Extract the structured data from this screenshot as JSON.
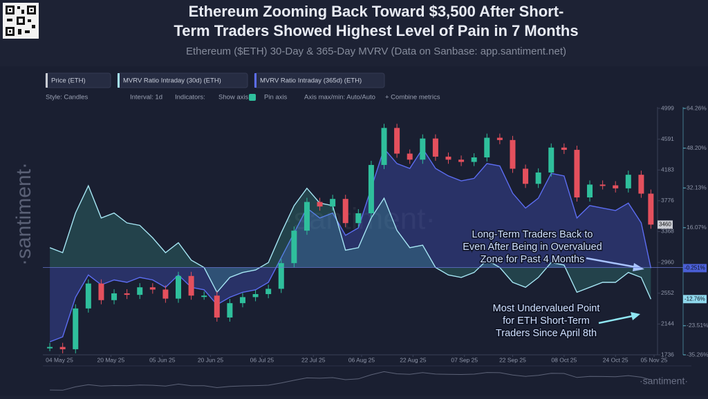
{
  "chart_data": {
    "type": "line",
    "title": [
      "Ethereum Zooming Back Toward $3,500 After Short-",
      "Term Traders Showed Highest Level of Pain in 7 Months"
    ],
    "subtitle": "Ethereum ($ETH) 30-Day & 365-Day MVRV (Data on Sanbase: app.santiment.net)",
    "toolbar": [
      "Style: Candles",
      "Interval: 1d",
      "Indicators:",
      "Show axis",
      "Pin axis",
      "Axis max/min: Auto/Auto",
      "+ Combine metrics"
    ],
    "watermark": "·santiment·",
    "x": [
      "2025-05-01",
      "2025-05-05",
      "2025-05-09",
      "2025-05-13",
      "2025-05-17",
      "2025-05-21",
      "2025-05-25",
      "2025-05-29",
      "2025-06-02",
      "2025-06-06",
      "2025-06-10",
      "2025-06-14",
      "2025-06-18",
      "2025-06-22",
      "2025-06-26",
      "2025-06-30",
      "2025-07-04",
      "2025-07-08",
      "2025-07-12",
      "2025-07-16",
      "2025-07-20",
      "2025-07-24",
      "2025-07-28",
      "2025-08-01",
      "2025-08-05",
      "2025-08-09",
      "2025-08-13",
      "2025-08-17",
      "2025-08-21",
      "2025-08-25",
      "2025-08-29",
      "2025-09-02",
      "2025-09-06",
      "2025-09-10",
      "2025-09-14",
      "2025-09-18",
      "2025-09-22",
      "2025-09-26",
      "2025-09-30",
      "2025-10-04",
      "2025-10-08",
      "2025-10-12",
      "2025-10-16",
      "2025-10-20",
      "2025-10-24",
      "2025-10-28",
      "2025-11-01",
      "2025-11-04"
    ],
    "series": [
      {
        "name": "Price (ETH)",
        "kind": "candles",
        "axis": "y",
        "color": "#c9ccd3",
        "up_color": "#2fbf9c",
        "down_color": "#e4505d",
        "values": [
          1840,
          1810,
          2350,
          2680,
          2460,
          2550,
          2530,
          2630,
          2600,
          2480,
          2780,
          2520,
          2520,
          2230,
          2420,
          2500,
          2540,
          2610,
          2950,
          3380,
          3760,
          3700,
          3800,
          3480,
          3610,
          4250,
          4740,
          4400,
          4320,
          4600,
          4360,
          4320,
          4290,
          4350,
          4610,
          4580,
          4200,
          4000,
          4150,
          4480,
          4450,
          3820,
          3990,
          3980,
          3940,
          4120,
          3870,
          3460
        ]
      },
      {
        "name": "MVRV Ratio Intraday (30d) (ETH)",
        "kind": "area",
        "axis": "y2",
        "color": "#a6e6f4",
        "fill": "rgba(70,190,170,0.22)",
        "label_color": "#8fd8ec",
        "values": [
          8,
          6,
          22,
          33,
          20,
          22,
          18,
          17,
          12,
          6,
          10,
          3,
          0,
          -10,
          -4,
          -2,
          -1,
          2,
          14,
          25,
          32,
          26,
          25,
          7,
          8,
          20,
          28,
          15,
          8,
          9,
          0,
          -3,
          -4,
          -2,
          3,
          0,
          -6,
          -8,
          -4,
          2,
          1,
          -10,
          -8,
          -6,
          -6,
          -2,
          -4,
          -12.76
        ],
        "value_labels": [
          null,
          null,
          null,
          null,
          null,
          null,
          null,
          null,
          null,
          null,
          null,
          null,
          null,
          null,
          null,
          null,
          null,
          null,
          null,
          null,
          null,
          null,
          null,
          null,
          null,
          null,
          null,
          null,
          null,
          null,
          null,
          null,
          null,
          null,
          null,
          null,
          null,
          null,
          null,
          null,
          null,
          null,
          null,
          null,
          null,
          null,
          null,
          "-12.76%"
        ]
      },
      {
        "name": "MVRV Ratio Intraday (365d) (ETH)",
        "kind": "area",
        "axis": "y2",
        "color": "#5c6df2",
        "fill": "rgba(72,92,215,0.33)",
        "label_color": "#4a5fd6",
        "values": [
          -30,
          -28,
          -12,
          -3,
          -7,
          -5,
          -6,
          -4,
          -5,
          -8,
          -3,
          -8,
          -9,
          -15,
          -12,
          -10,
          -9,
          -6,
          4,
          14,
          24,
          20,
          22,
          13,
          16,
          32,
          48,
          42,
          40,
          48,
          40,
          37,
          35,
          36,
          42,
          41,
          30,
          24,
          28,
          38,
          37,
          20,
          25,
          24,
          23,
          26,
          18,
          -0.251
        ],
        "value_labels": [
          null,
          null,
          null,
          null,
          null,
          null,
          null,
          null,
          null,
          null,
          null,
          null,
          null,
          null,
          null,
          null,
          null,
          null,
          null,
          null,
          null,
          null,
          null,
          null,
          null,
          null,
          null,
          null,
          null,
          null,
          null,
          null,
          null,
          null,
          null,
          null,
          null,
          null,
          null,
          null,
          null,
          null,
          null,
          null,
          null,
          null,
          null,
          "-0.251%"
        ]
      }
    ],
    "xticks": [
      {
        "value": "2025-05-04",
        "label": "04 May 25"
      },
      {
        "value": "2025-05-20",
        "label": "20 May 25"
      },
      {
        "value": "2025-06-05",
        "label": "05 Jun 25"
      },
      {
        "value": "2025-06-20",
        "label": "20 Jun 25"
      },
      {
        "value": "2025-07-06",
        "label": "06 Jul 25"
      },
      {
        "value": "2025-07-22",
        "label": "22 Jul 25"
      },
      {
        "value": "2025-08-06",
        "label": "06 Aug 25"
      },
      {
        "value": "2025-08-22",
        "label": "22 Aug 25"
      },
      {
        "value": "2025-09-07",
        "label": "07 Sep 25"
      },
      {
        "value": "2025-09-22",
        "label": "22 Sep 25"
      },
      {
        "value": "2025-10-08",
        "label": "08 Oct 25"
      },
      {
        "value": "2025-10-24",
        "label": "24 Oct 25"
      },
      {
        "value": "2025-11-05",
        "label": "05 Nov 25"
      }
    ],
    "ylim": [
      1736,
      4999
    ],
    "yticks": [
      1736,
      2144,
      2552,
      2960,
      3368,
      3776,
      4183,
      4591,
      4999
    ],
    "y2lim": [
      -35.26,
      64.26
    ],
    "y2ticks": [
      {
        "value": 64.26,
        "label": "64.26%"
      },
      {
        "value": 48.2,
        "label": "48.20%"
      },
      {
        "value": 32.13,
        "label": "32.13%"
      },
      {
        "value": 16.07,
        "label": "16.07%"
      },
      {
        "value": -23.51,
        "label": "-23.51%"
      },
      {
        "value": -35.26,
        "label": "-35.26%"
      }
    ],
    "annotations": [
      {
        "lines": [
          "Long-Term Traders Back to",
          "Even After Being in Overvalued",
          "Zone for Past 4 Months"
        ]
      },
      {
        "lines": [
          "Most Undervalued Point",
          "for ETH Short-Term",
          "Traders Since April 8th"
        ]
      }
    ]
  }
}
